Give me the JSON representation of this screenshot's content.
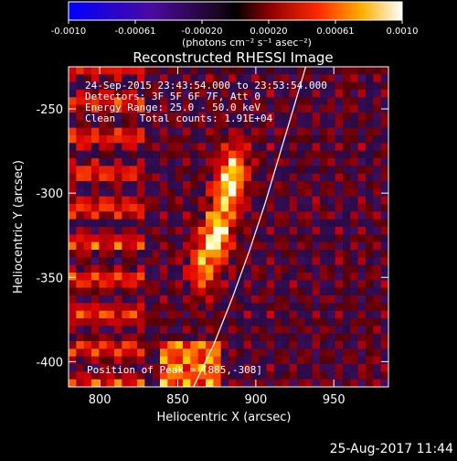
{
  "colorbar": {
    "ticks": [
      "-0.0010",
      "-0.00061",
      "-0.00020",
      "0.00020",
      "0.00061",
      "0.0010"
    ],
    "unit_label": "(photons cm⁻² s⁻¹ asec⁻²)",
    "range": [
      -0.001,
      0.001
    ]
  },
  "chart_data": {
    "type": "heatmap",
    "title": "Reconstructed RHESSI Image",
    "xlabel": "Heliocentric X (arcsec)",
    "ylabel": "Heliocentric Y (arcsec)",
    "x_ticks": [
      "800",
      "850",
      "900",
      "950"
    ],
    "y_ticks": [
      "-250",
      "-300",
      "-350",
      "-400"
    ],
    "x_tick_values": [
      800,
      850,
      900,
      950
    ],
    "y_tick_values": [
      -250,
      -300,
      -350,
      -400
    ],
    "xlim": [
      780,
      985
    ],
    "ylim": [
      -415,
      -225
    ],
    "info_lines": [
      "24-Sep-2015 23:43:54.000 to 23:53:54.000",
      "Detectors: 3F 5F 6F 7F, Att 0",
      "Energy Range: 25.0 - 50.0 keV",
      "Clean    Total counts: 1.91E+04"
    ],
    "peak_label": "Position of Peak = [885,-308]",
    "peak": [
      885,
      -308
    ],
    "limb_curve": [
      [
        860,
        -415
      ],
      [
        873,
        -390
      ],
      [
        885,
        -362
      ],
      [
        896,
        -334
      ],
      [
        906,
        -306
      ],
      [
        915,
        -278
      ],
      [
        924,
        -250
      ],
      [
        932,
        -225
      ]
    ],
    "sources": [
      {
        "x": 875,
        "y": -325,
        "intensity": 0.001
      },
      {
        "x": 882,
        "y": -297,
        "intensity": 0.0008
      },
      {
        "x": 865,
        "y": -345,
        "intensity": 0.0006
      },
      {
        "x": 888,
        "y": -282,
        "intensity": 0.0005
      }
    ]
  },
  "footer": {
    "timestamp": "25-Aug-2017 11:44"
  }
}
